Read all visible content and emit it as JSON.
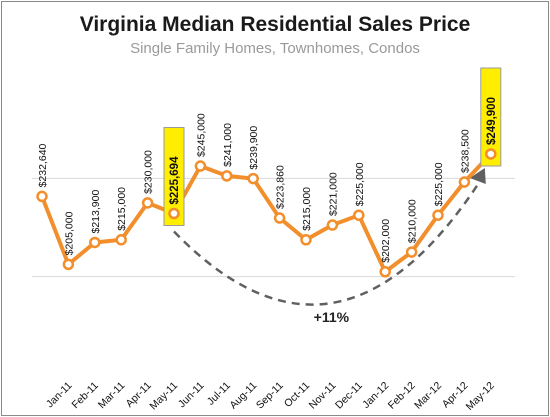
{
  "chart_data": {
    "type": "line",
    "title": "Virginia Median Residential Sales Price",
    "subtitle": "Single Family Homes, Townhomes, Condos",
    "categories": [
      "Jan-11",
      "Feb-11",
      "Mar-11",
      "Apr-11",
      "May-11",
      "Jun-11",
      "Jul-11",
      "Aug-11",
      "Sep-11",
      "Oct-11",
      "Nov-11",
      "Dec-11",
      "Jan-12",
      "Feb-12",
      "Mar-12",
      "Apr-12",
      "May-12"
    ],
    "leading_value": 232640,
    "leading_label": "$232,640",
    "series": [
      {
        "values": [
          205000,
          213900,
          215000,
          230000,
          225694,
          245000,
          241000,
          239900,
          223860,
          215000,
          221000,
          225000,
          202000,
          210000,
          225000,
          238500,
          249900
        ],
        "labels": [
          "$205,000",
          "$213,900",
          "$215,000",
          "$230,000",
          "$225,694",
          "$245,000",
          "$241,000",
          "$239,900",
          "$223,860",
          "$215,000",
          "$221,000",
          "$225,000",
          "$202,000",
          "$210,000",
          "$225,000",
          "$238,500",
          "$249,900"
        ]
      }
    ],
    "highlighted": [
      "May-11",
      "May-12"
    ],
    "annotation": "+11%",
    "ylim": [
      160000,
      280000
    ],
    "gridlines": [
      200000,
      240000
    ],
    "xlabel": "",
    "ylabel": "",
    "colors": {
      "line": "#f28e2b",
      "marker_fill": "#ffffff",
      "highlight_fill": "#ffee00",
      "highlight_stroke": "#9a9a9a",
      "grid": "#d9d9d9",
      "arrow": "#606060"
    }
  }
}
